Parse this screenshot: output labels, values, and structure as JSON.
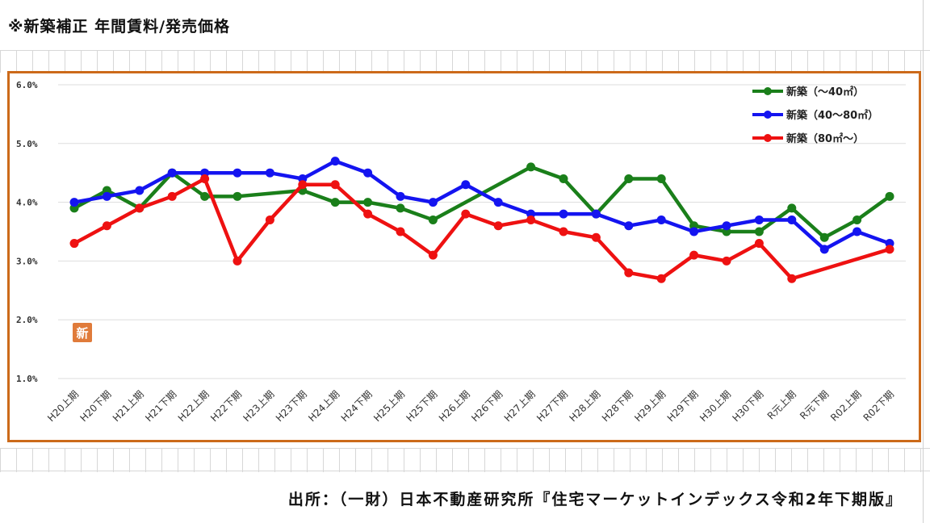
{
  "header": {
    "title": "※新築補正 年間賃料/発売価格"
  },
  "footer": {
    "source": "出所：（一財）日本不動産研究所『住宅マーケットインデックス令和2年下期版』"
  },
  "badge": {
    "text": "新"
  },
  "chart_data": {
    "type": "line",
    "title": "",
    "xlabel": "",
    "ylabel": "",
    "ylim": [
      1.0,
      6.0
    ],
    "yticks": [
      "1.0%",
      "2.0%",
      "3.0%",
      "4.0%",
      "5.0%",
      "6.0%"
    ],
    "grid": "horizontal",
    "legend_position": "top-right",
    "categories": [
      "H20上期",
      "H20下期",
      "H21上期",
      "H21下期",
      "H22上期",
      "H22下期",
      "H23上期",
      "H23下期",
      "H24上期",
      "H24下期",
      "H25上期",
      "H25下期",
      "H26上期",
      "H26下期",
      "H27上期",
      "H27下期",
      "H28上期",
      "H28下期",
      "H29上期",
      "H29下期",
      "H30上期",
      "H30下期",
      "R元上期",
      "R元下期",
      "R02上期",
      "R02下期"
    ],
    "series": [
      {
        "name": "新築（～40㎡）",
        "color": "#1a7f1a",
        "values": [
          3.9,
          4.2,
          3.9,
          4.5,
          4.1,
          4.1,
          null,
          4.2,
          4.0,
          4.0,
          3.9,
          3.7,
          null,
          null,
          4.6,
          4.4,
          3.8,
          4.4,
          4.4,
          3.6,
          3.5,
          3.5,
          3.9,
          3.4,
          3.7,
          4.1
        ]
      },
      {
        "name": "新築（40～80㎡）",
        "color": "#1414f0",
        "values": [
          4.0,
          4.1,
          4.2,
          4.5,
          4.5,
          4.5,
          4.5,
          4.4,
          4.7,
          4.5,
          4.1,
          4.0,
          4.3,
          4.0,
          3.8,
          3.8,
          3.8,
          3.6,
          3.7,
          3.5,
          3.6,
          3.7,
          3.7,
          3.2,
          3.5,
          3.3
        ]
      },
      {
        "name": "新築（80㎡～）",
        "color": "#ee1111",
        "values": [
          3.3,
          3.6,
          3.9,
          4.1,
          4.4,
          3.0,
          3.7,
          4.3,
          4.3,
          3.8,
          3.5,
          3.1,
          3.8,
          3.6,
          3.7,
          3.5,
          3.4,
          2.8,
          2.7,
          3.1,
          3.0,
          3.3,
          2.7,
          null,
          null,
          3.2
        ]
      }
    ]
  }
}
